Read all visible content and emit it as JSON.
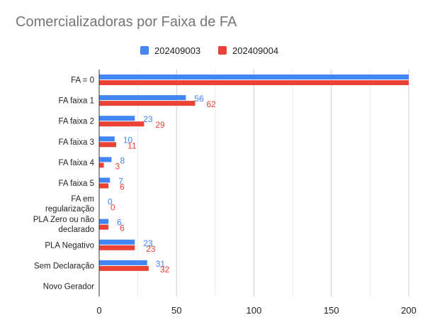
{
  "chart_data": {
    "type": "bar",
    "orientation": "horizontal",
    "title": "Comercializadoras por Faixa de FA",
    "xlabel": "",
    "ylabel": "",
    "categories": [
      [
        "FA = 0"
      ],
      [
        "FA faixa 1"
      ],
      [
        "FA faixa 2"
      ],
      [
        "FA faixa 3"
      ],
      [
        "FA faixa 4"
      ],
      [
        "FA faixa 5"
      ],
      [
        "FA em",
        "regularização"
      ],
      [
        "PLA Zero ou não",
        "declarado"
      ],
      [
        "PLA Negativo"
      ],
      [
        "Sem Declaração"
      ],
      [
        "Novo Gerador"
      ]
    ],
    "series": [
      {
        "name": "202409003",
        "color": "#4285f4",
        "values": [
          200,
          56,
          23,
          10,
          8,
          7,
          0,
          6,
          23,
          31,
          null
        ]
      },
      {
        "name": "202409004",
        "color": "#ea4335",
        "values": [
          200,
          62,
          29,
          11,
          3,
          6,
          0,
          6,
          23,
          32,
          null
        ]
      }
    ],
    "xlim": [
      0,
      200
    ],
    "xticks": [
      0,
      50,
      100,
      150,
      200
    ],
    "grid": true,
    "legend_position": "top"
  }
}
